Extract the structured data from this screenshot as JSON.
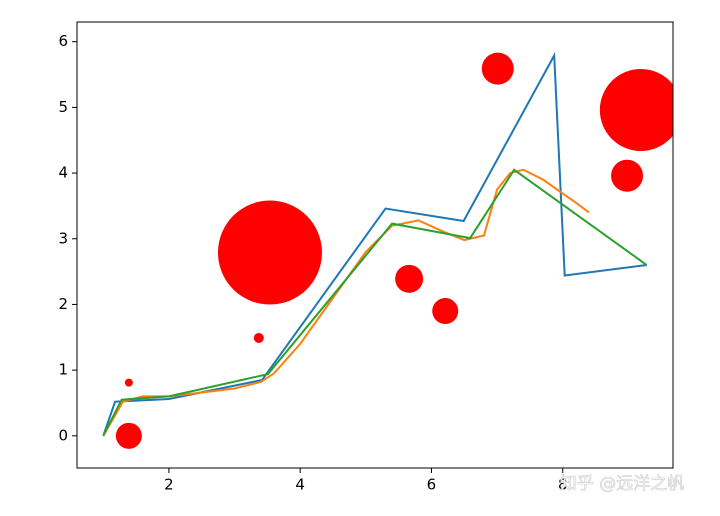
{
  "chart_data": {
    "type": "line",
    "xlim": [
      0.6,
      9.68
    ],
    "ylim": [
      -0.49,
      6.3
    ],
    "xticks": [
      2,
      4,
      6,
      8
    ],
    "yticks": [
      0,
      1,
      2,
      3,
      4,
      5,
      6
    ],
    "series": [
      {
        "color": "#1f77b4",
        "x": [
          1,
          1.18,
          2.0,
          3.42,
          5.3,
          6.49,
          7.87,
          8.03,
          9.28
        ],
        "values": [
          0,
          0.52,
          0.56,
          0.85,
          3.46,
          3.27,
          5.79,
          2.44,
          2.6
        ]
      },
      {
        "color": "#ff7f0e",
        "x": [
          1,
          1.3,
          1.6,
          2,
          2.5,
          3,
          3.4,
          3.6,
          4,
          4.5,
          5,
          5.4,
          5.8,
          6.2,
          6.5,
          6.8,
          7,
          7.2,
          7.4,
          7.7,
          8.2,
          8.4
        ],
        "values": [
          0,
          0.52,
          0.6,
          0.6,
          0.66,
          0.72,
          0.82,
          0.95,
          1.4,
          2.1,
          2.8,
          3.2,
          3.28,
          3.1,
          2.98,
          3.05,
          3.75,
          4.0,
          4.05,
          3.9,
          3.55,
          3.4
        ]
      },
      {
        "color": "#2ca02c",
        "x": [
          1,
          1.28,
          2,
          3.51,
          5.4,
          6.59,
          7.26,
          9.28
        ],
        "values": [
          0,
          0.55,
          0.6,
          0.94,
          3.23,
          3.01,
          4.05,
          2.6
        ]
      }
    ],
    "scatter": {
      "color": "#ff0000",
      "x": [
        1.39,
        1.39,
        3.37,
        3.54,
        5.66,
        6.21,
        7.01,
        9.19,
        8.98
      ],
      "values": [
        0.0,
        0.81,
        1.49,
        2.79,
        2.39,
        1.9,
        5.59,
        4.96,
        3.96
      ],
      "sizes": [
        169,
        16,
        25,
        2704,
        196,
        169,
        256,
        1681,
        256
      ]
    },
    "watermark": "知乎 @远洋之帆"
  }
}
